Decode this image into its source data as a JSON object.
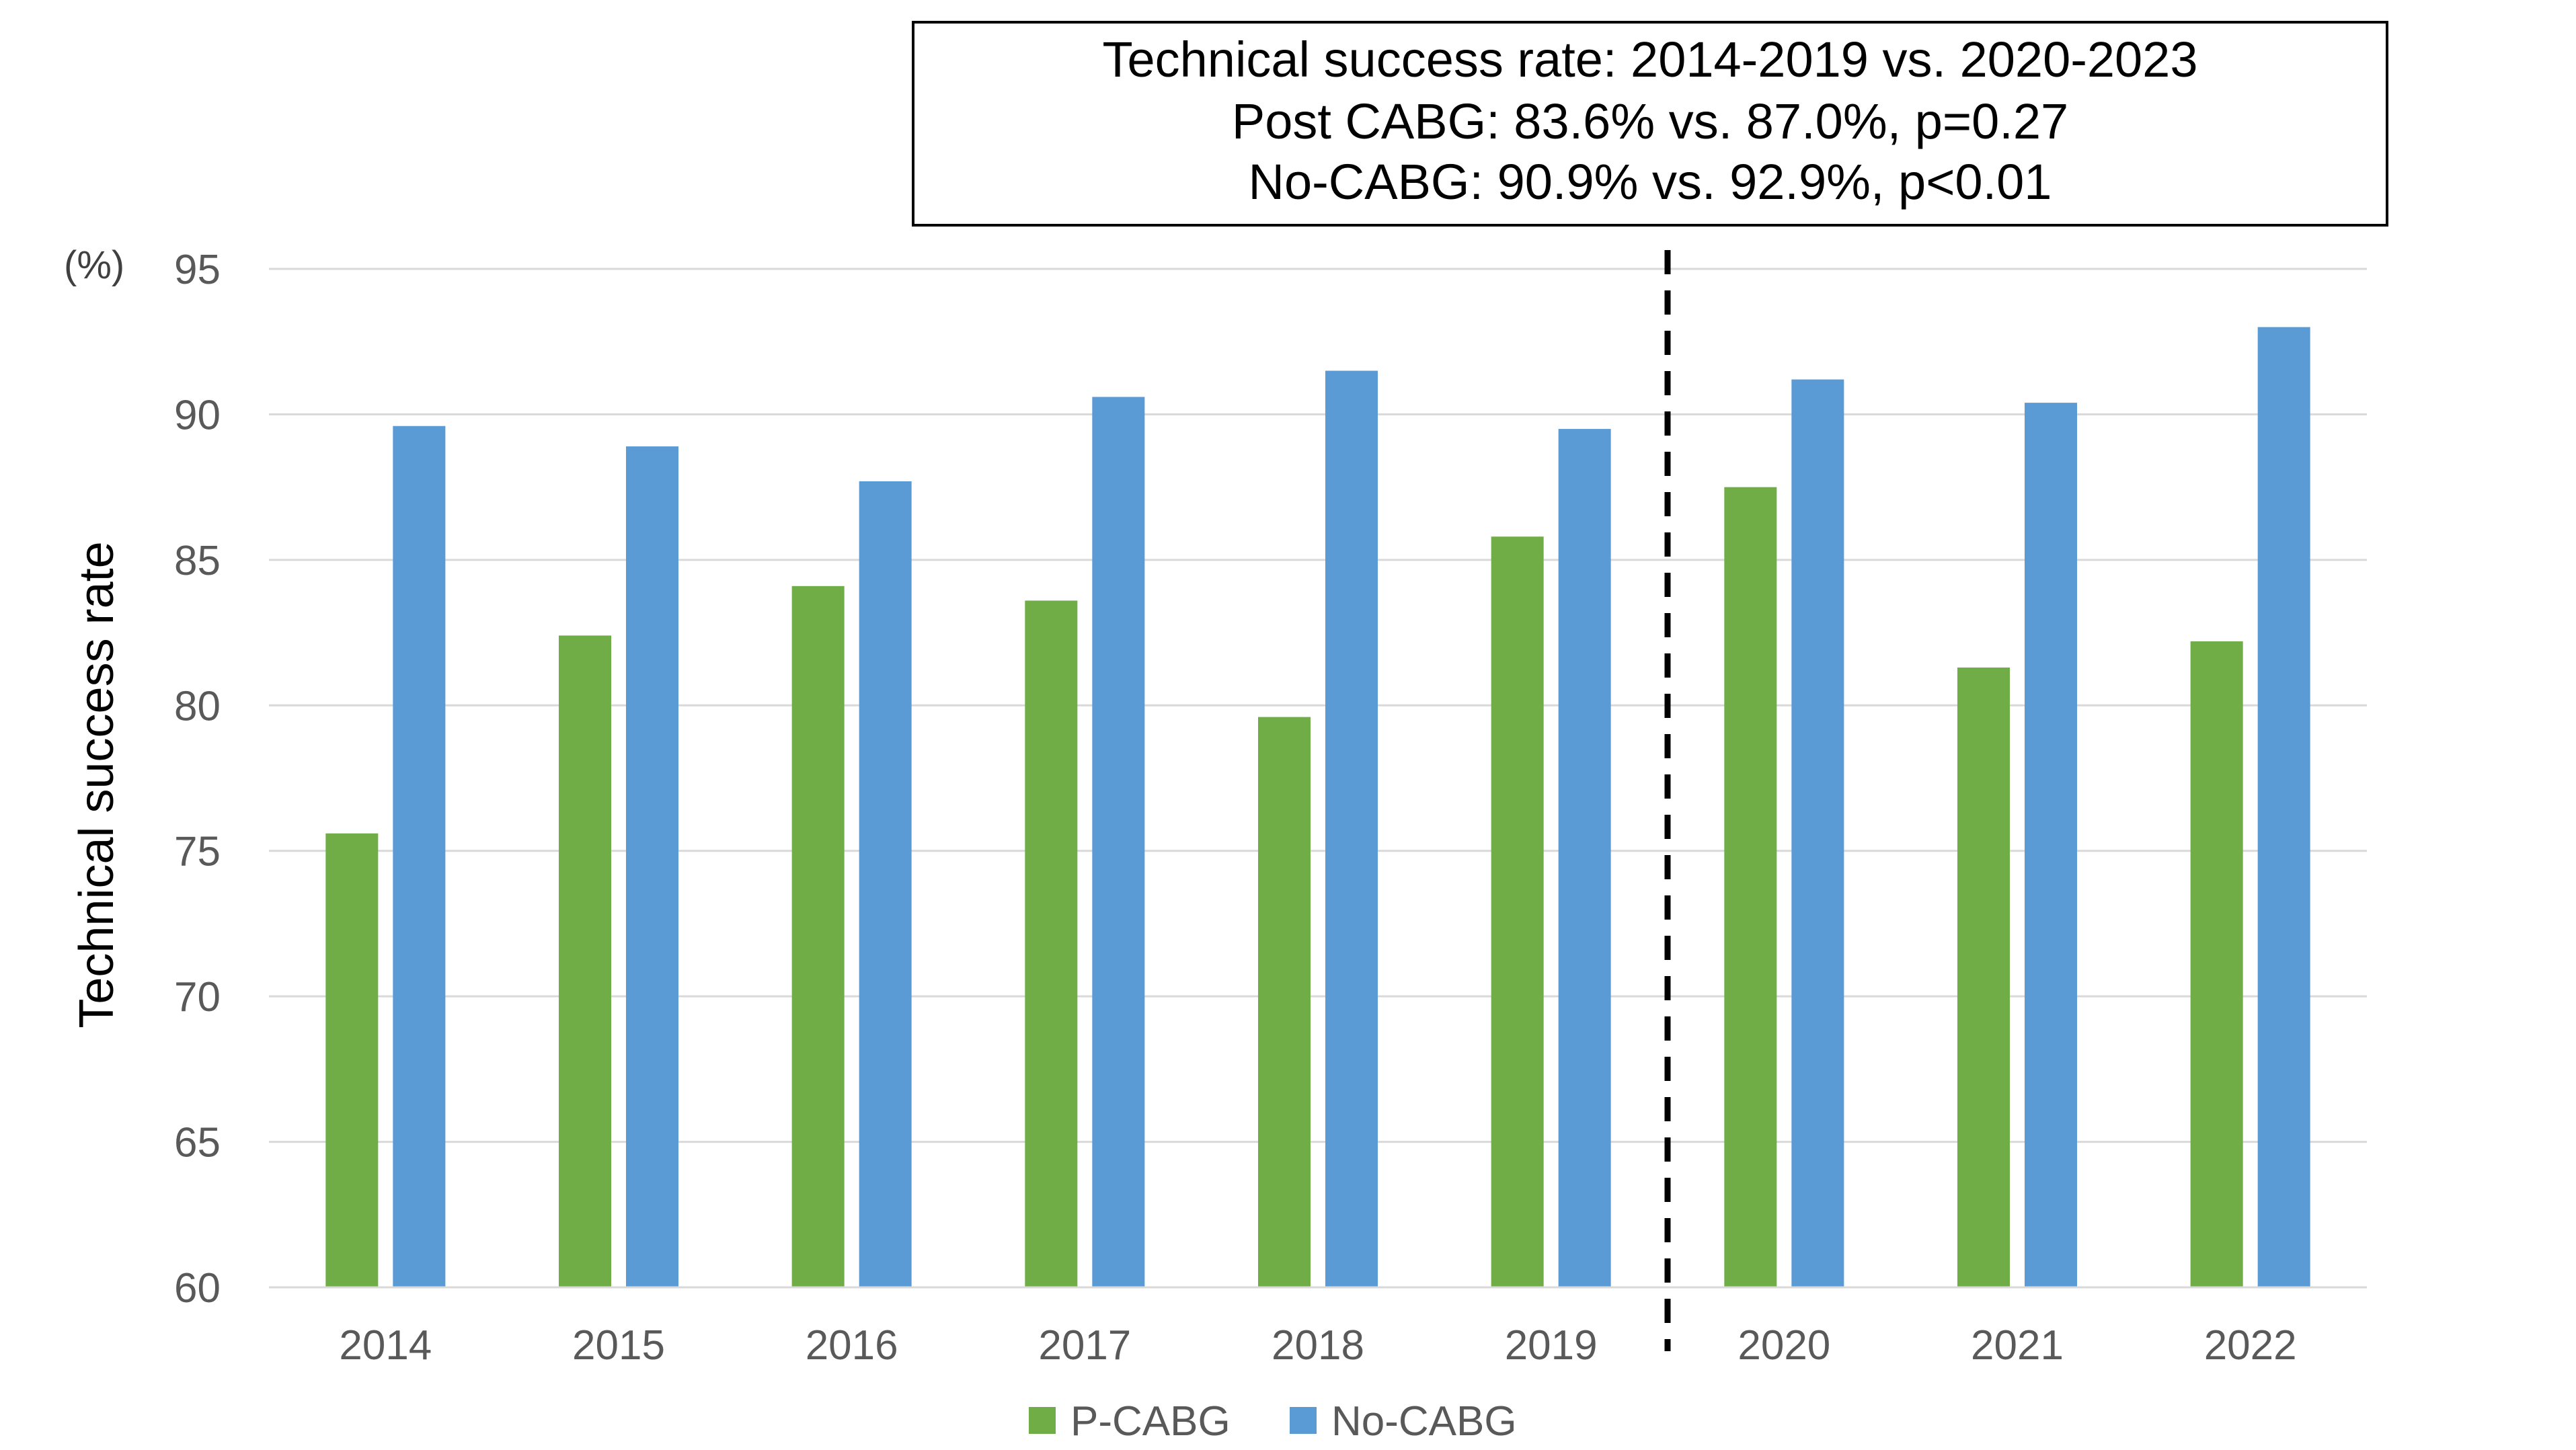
{
  "chart_data": {
    "type": "bar",
    "title": "",
    "xlabel": "",
    "ylabel": "Technical success rate",
    "yunit": "(%)",
    "ylim": [
      60,
      95
    ],
    "yticks": [
      60,
      65,
      70,
      75,
      80,
      85,
      90,
      95
    ],
    "grid": true,
    "legend_position": "bottom-center",
    "categories": [
      "2014",
      "2015",
      "2016",
      "2017",
      "2018",
      "2019",
      "2020",
      "2021",
      "2022"
    ],
    "series": [
      {
        "name": "P-CABG",
        "color": "#70AD47",
        "values": [
          75.6,
          82.4,
          84.1,
          83.6,
          79.6,
          85.8,
          87.5,
          81.3,
          82.2
        ]
      },
      {
        "name": "No-CABG",
        "color": "#5B9BD5",
        "values": [
          89.6,
          88.9,
          87.7,
          90.6,
          91.5,
          89.5,
          91.2,
          90.4,
          93.0
        ]
      }
    ],
    "divider_after_category": "2019",
    "annotation": {
      "lines": [
        "Technical success rate: 2014-2019 vs. 2020-2023",
        "Post CABG: 83.6% vs. 87.0%, p=0.27",
        "No-CABG: 90.9% vs. 92.9%, p<0.01"
      ]
    }
  }
}
